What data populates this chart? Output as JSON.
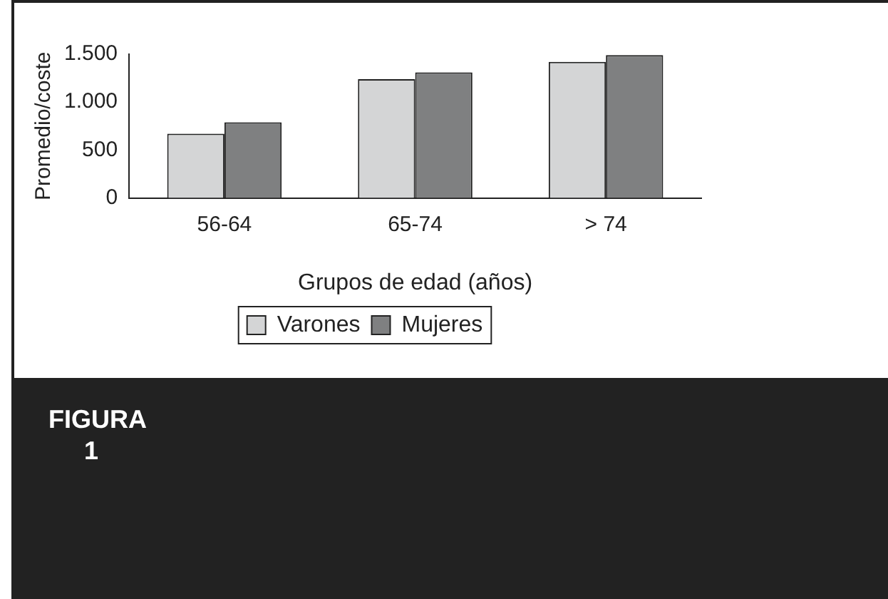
{
  "chart_data": {
    "type": "bar",
    "xlabel": "Grupos de edad (años)",
    "ylabel": "Promedio/coste",
    "categories": [
      "56-64",
      "65-74",
      "> 74"
    ],
    "series": [
      {
        "name": "Varones",
        "color": "#d4d5d6",
        "values": [
          670,
          1240,
          1420
        ]
      },
      {
        "name": "Mujeres",
        "color": "#7f8081",
        "values": [
          790,
          1310,
          1490
        ]
      }
    ],
    "ylim": [
      0,
      1500
    ],
    "yticks": [
      0,
      500,
      {
        "value": 1000,
        "label": "1.000"
      },
      {
        "value": 1500,
        "label": "1.500"
      }
    ],
    "grid": false,
    "legend": "bottom",
    "annotations": [
      "FIGURA 1"
    ]
  }
}
